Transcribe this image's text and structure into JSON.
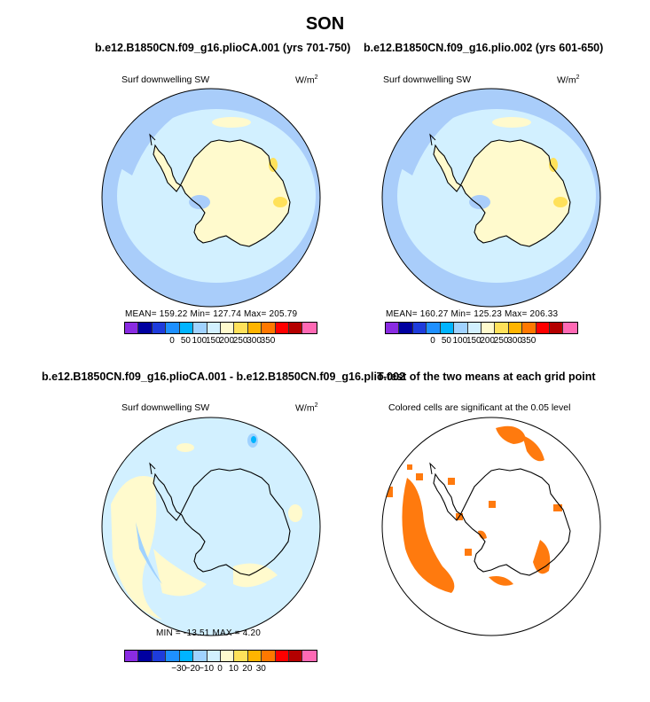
{
  "figure": {
    "title": "SON",
    "panels": [
      {
        "title": "b.e12.B1850CN.f09_g16.plioCA.001 (yrs 701-750)",
        "left_label": "Surf downwelling SW",
        "units_base": "W/m",
        "units_exp": "2",
        "stats": "MEAN=  159.22   Min=  127.74   Max=  205.79"
      },
      {
        "title": "b.e12.B1850CN.f09_g16.plio.002 (yrs 601-650)",
        "left_label": "Surf downwelling SW",
        "units_base": "W/m",
        "units_exp": "2",
        "stats": "MEAN=  160.27   Min=  125.23   Max=  206.33"
      },
      {
        "title": "b.e12.B1850CN.f09_g16.plioCA.001 - b.e12.B1850CN.f09_g16.plio.002",
        "left_label": "Surf downwelling SW",
        "units_base": "W/m",
        "units_exp": "2",
        "stats": "MIN  =  -13.51   MAX  =     4.20"
      },
      {
        "title": "T-test of the two means at each grid point",
        "left_label": "Colored cells are significant at the 0.05 level"
      }
    ]
  },
  "colors": {
    "abs_scale": [
      "#8a2be2",
      "#0000a0",
      "#1e3cdc",
      "#1e90ff",
      "#00b4ff",
      "#a0d2ff",
      "#d2f0ff",
      "#fffacd",
      "#ffe15a",
      "#ffb400",
      "#ff7800",
      "#ff0000",
      "#b40000",
      "#ff69b4"
    ],
    "diff_scale": [
      "#8a2be2",
      "#0000a0",
      "#1e3cdc",
      "#1e90ff",
      "#00b4ff",
      "#a0d2ff",
      "#d2f0ff",
      "#fffacd",
      "#ffe15a",
      "#ffb400",
      "#ff7800",
      "#ff0000",
      "#b40000",
      "#ff69b4"
    ],
    "ttest": "#ff7a0e",
    "ocean_low": "#a9cdfa",
    "ocean_mid": "#d2f0ff",
    "land_high": "#fffacd",
    "land_peak": "#ffe15a"
  },
  "chart_data": [
    {
      "type": "heatmap",
      "title": "b.e12.B1850CN.f09_g16.plioCA.001 (yrs 701-750)",
      "variable": "Surf downwelling SW",
      "units": "W/m2",
      "projection": "south polar stereographic",
      "colorbar_levels": [
        0,
        50,
        100,
        150,
        200,
        250,
        300,
        350
      ],
      "stats": {
        "mean": 159.22,
        "min": 127.74,
        "max": 205.79
      }
    },
    {
      "type": "heatmap",
      "title": "b.e12.B1850CN.f09_g16.plio.002 (yrs 601-650)",
      "variable": "Surf downwelling SW",
      "units": "W/m2",
      "projection": "south polar stereographic",
      "colorbar_levels": [
        0,
        50,
        100,
        150,
        200,
        250,
        300,
        350
      ],
      "stats": {
        "mean": 160.27,
        "min": 125.23,
        "max": 206.33
      }
    },
    {
      "type": "heatmap",
      "title": "b.e12.B1850CN.f09_g16.plioCA.001 - b.e12.B1850CN.f09_g16.plio.002",
      "variable": "Surf downwelling SW",
      "units": "W/m2",
      "projection": "south polar stereographic",
      "colorbar_levels": [
        -30,
        -20,
        -10,
        0,
        10,
        20,
        30
      ],
      "stats": {
        "min": -13.51,
        "max": 4.2
      }
    },
    {
      "type": "heatmap",
      "title": "T-test of the two means at each grid point",
      "note": "Colored cells are significant at the 0.05 level",
      "projection": "south polar stereographic"
    }
  ],
  "colorbars": {
    "abs_ticks": [
      "0",
      "50",
      "100",
      "150",
      "200",
      "250",
      "300",
      "350"
    ],
    "diff_ticks": [
      "-30",
      "-20",
      "-10",
      "0",
      "10",
      "20",
      "30"
    ]
  }
}
